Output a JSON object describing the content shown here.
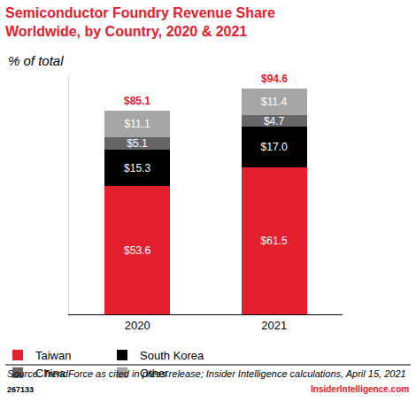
{
  "chart_data": {
    "type": "bar",
    "title": [
      "Semiconductor Foundry Revenue Share",
      "Worldwide, by Country, 2020 & 2021"
    ],
    "subtitle": "% of total",
    "categories": [
      "2020",
      "2021"
    ],
    "series": [
      {
        "name": "Taiwan",
        "color": "#e4202e",
        "values": [
          53.6,
          61.5
        ],
        "value_labels": [
          "$53.6",
          "$61.5"
        ]
      },
      {
        "name": "South Korea",
        "color": "#000000",
        "values": [
          15.3,
          17.0
        ],
        "value_labels": [
          "$15.3",
          "$17.0"
        ]
      },
      {
        "name": "China",
        "color": "#666666",
        "values": [
          5.1,
          4.7
        ],
        "value_labels": [
          "$5.1",
          "$4.7"
        ]
      },
      {
        "name": "Other",
        "color": "#a6a6a6",
        "values": [
          11.1,
          11.4
        ],
        "value_labels": [
          "$11.1",
          "$11.4"
        ]
      }
    ],
    "totals": {
      "values": [
        85.1,
        94.6
      ],
      "value_labels": [
        "$85.1",
        "$94.6"
      ],
      "color": "#e4202e"
    },
    "stacked": true,
    "data_labels": true,
    "ylim": [
      0,
      100
    ],
    "grid": false,
    "tick_labels": "x",
    "legend": "bottom",
    "source": "Source: TrendForce as cited in press release; Insider Intelligence calculations, April 15, 2021",
    "chart_id": "267133",
    "brand": "InsiderIntelligence.com"
  }
}
